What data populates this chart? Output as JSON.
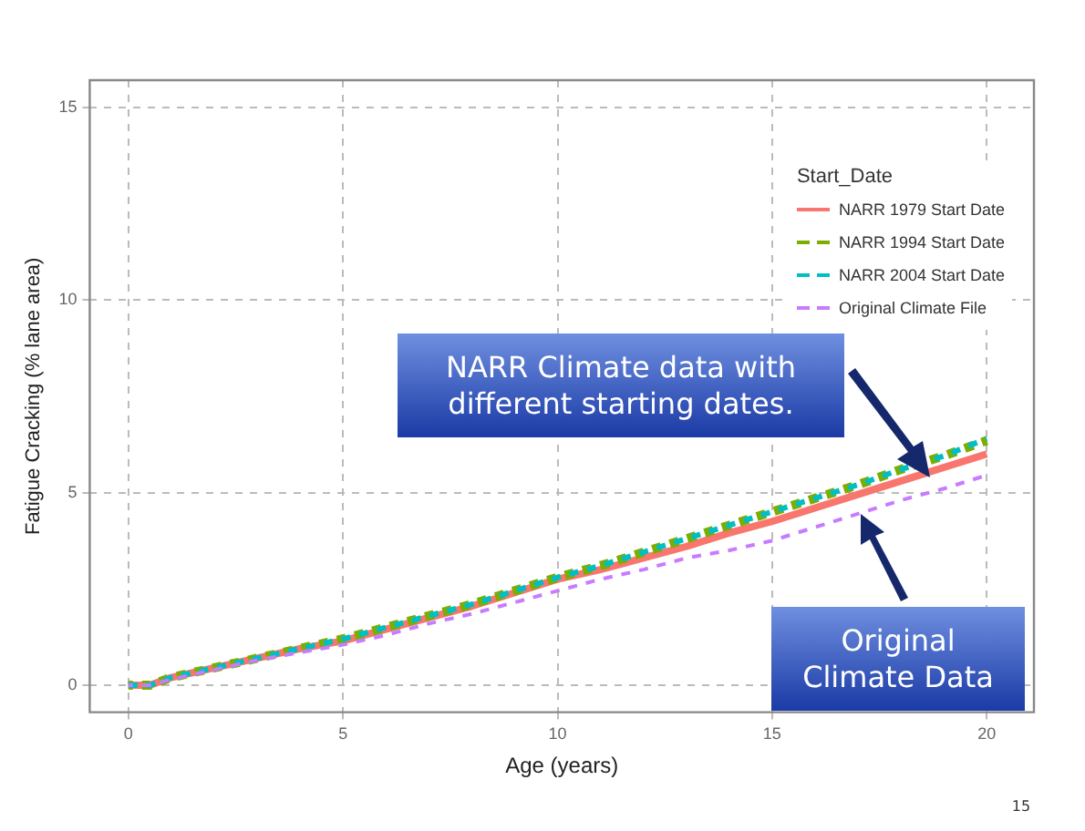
{
  "chart_data": {
    "type": "line",
    "xlabel": "Age (years)",
    "ylabel": "Fatigue Cracking (% lane area)",
    "legend_title": "Start_Date",
    "legend": "top right",
    "grid": true,
    "marker": "none",
    "xlim": [
      -0.9,
      21.1
    ],
    "xticks": [
      0,
      5,
      10,
      15,
      20
    ],
    "ylim": [
      -0.7,
      15.7
    ],
    "yticks": [
      0,
      5,
      10,
      15
    ],
    "x": [
      0,
      0.5,
      1,
      2,
      3,
      4,
      5,
      6,
      7,
      8,
      9,
      10,
      11,
      12,
      13,
      14,
      15,
      16,
      17,
      18,
      19,
      20
    ],
    "series": [
      {
        "name": "NARR 1979 Start Date",
        "color": "#f8766d",
        "line_style": "solid",
        "values": [
          0,
          0,
          0.2,
          0.45,
          0.7,
          0.95,
          1.15,
          1.45,
          1.75,
          2.05,
          2.4,
          2.75,
          3.0,
          3.3,
          3.6,
          3.95,
          4.25,
          4.6,
          4.95,
          5.3,
          5.65,
          6.0
        ]
      },
      {
        "name": "NARR 1994 Start Date",
        "color": "#7cae00",
        "line_style": "dashed",
        "values": [
          0,
          0,
          0.2,
          0.45,
          0.7,
          0.95,
          1.2,
          1.5,
          1.8,
          2.1,
          2.45,
          2.8,
          3.1,
          3.45,
          3.8,
          4.15,
          4.5,
          4.85,
          5.2,
          5.6,
          5.95,
          6.35
        ]
      },
      {
        "name": "NARR 2004 Start Date",
        "color": "#00bfc4",
        "line_style": "dashed",
        "values": [
          0,
          0,
          0.2,
          0.45,
          0.7,
          0.95,
          1.2,
          1.5,
          1.8,
          2.1,
          2.45,
          2.8,
          3.1,
          3.45,
          3.8,
          4.15,
          4.5,
          4.85,
          5.2,
          5.6,
          5.95,
          6.4
        ]
      },
      {
        "name": "Original Climate File",
        "color": "#c77cff",
        "line_style": "dashed",
        "values": [
          0,
          0,
          0.15,
          0.4,
          0.65,
          0.85,
          1.05,
          1.3,
          1.6,
          1.85,
          2.15,
          2.45,
          2.75,
          3.0,
          3.3,
          3.5,
          3.75,
          4.1,
          4.45,
          4.8,
          5.1,
          5.45
        ]
      }
    ],
    "annotations": [
      "NARR Climate data with different starting dates.",
      "Original Climate Data",
      "15"
    ]
  }
}
